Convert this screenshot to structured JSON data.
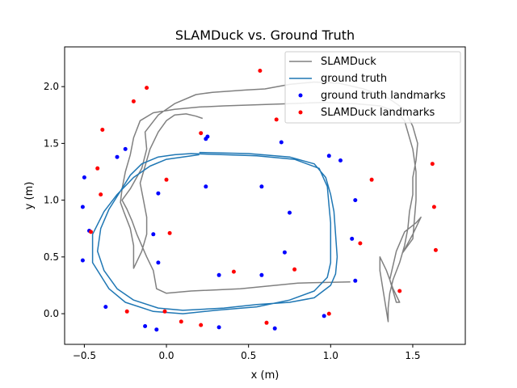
{
  "chart_data": {
    "type": "scatter",
    "title": "SLAMDuck vs. Ground Truth",
    "xlabel": "x (m)",
    "ylabel": "y (m)",
    "xlim": [
      -0.62,
      1.82
    ],
    "ylim": [
      -0.27,
      2.35
    ],
    "xticks": [
      -0.5,
      0.0,
      0.5,
      1.0,
      1.5
    ],
    "xtick_labels": [
      "−0.5",
      "0.0",
      "0.5",
      "1.0",
      "1.5"
    ],
    "yticks": [
      0.0,
      0.5,
      1.0,
      1.5,
      2.0
    ],
    "ytick_labels": [
      "0.0",
      "0.5",
      "1.0",
      "1.5",
      "2.0"
    ],
    "grid": false,
    "legend_position": "top-right",
    "legend": [
      {
        "label": "SLAMDuck",
        "kind": "line",
        "color": "#808080"
      },
      {
        "label": "ground truth",
        "kind": "line",
        "color": "#1f77b4"
      },
      {
        "label": "ground truth landmarks",
        "kind": "marker",
        "color": "#0000ff"
      },
      {
        "label": "SLAMDuck landmarks",
        "kind": "marker",
        "color": "#ff0000"
      }
    ],
    "series": [
      {
        "name": "SLAMDuck",
        "kind": "line",
        "color": "#808080",
        "points": [
          [
            1.12,
            0.28
          ],
          [
            0.8,
            0.27
          ],
          [
            0.45,
            0.22
          ],
          [
            0.15,
            0.2
          ],
          [
            0.0,
            0.18
          ],
          [
            -0.06,
            0.22
          ],
          [
            -0.08,
            0.38
          ],
          [
            -0.12,
            0.5
          ],
          [
            -0.15,
            0.6
          ],
          [
            -0.18,
            0.7
          ],
          [
            -0.21,
            0.82
          ],
          [
            -0.24,
            0.92
          ],
          [
            -0.27,
            1.0
          ],
          [
            -0.22,
            1.1
          ],
          [
            -0.15,
            1.28
          ],
          [
            -0.12,
            1.45
          ],
          [
            -0.13,
            1.6
          ],
          [
            -0.05,
            1.75
          ],
          [
            0.05,
            1.85
          ],
          [
            0.18,
            1.93
          ],
          [
            0.28,
            1.95
          ],
          [
            0.48,
            1.97
          ],
          [
            0.6,
            1.98
          ],
          [
            0.75,
            2.02
          ],
          [
            0.9,
            2.04
          ],
          [
            1.05,
            2.03
          ],
          [
            1.2,
            1.98
          ],
          [
            1.35,
            1.9
          ],
          [
            1.45,
            1.8
          ],
          [
            1.5,
            1.65
          ],
          [
            1.53,
            1.5
          ],
          [
            1.52,
            1.35
          ],
          [
            1.5,
            1.2
          ],
          [
            1.5,
            1.05
          ],
          [
            1.48,
            0.9
          ],
          [
            1.47,
            0.75
          ],
          [
            1.45,
            0.6
          ],
          [
            1.42,
            0.45
          ],
          [
            1.38,
            0.3
          ],
          [
            1.36,
            0.18
          ],
          [
            1.35,
            0.05
          ],
          [
            1.35,
            -0.07
          ],
          [
            1.32,
            0.2
          ],
          [
            1.3,
            0.38
          ],
          [
            1.3,
            0.5
          ],
          [
            1.34,
            0.38
          ],
          [
            1.38,
            0.22
          ],
          [
            1.42,
            0.1
          ],
          [
            1.4,
            0.1
          ],
          [
            1.36,
            0.3
          ],
          [
            1.4,
            0.55
          ],
          [
            1.45,
            0.72
          ],
          [
            1.52,
            0.8
          ],
          [
            1.55,
            0.85
          ],
          [
            1.5,
            0.7
          ],
          [
            1.44,
            0.54
          ],
          [
            1.5,
            0.66
          ],
          [
            1.52,
            1.0
          ],
          [
            1.52,
            1.25
          ],
          [
            1.5,
            1.45
          ],
          [
            1.48,
            1.55
          ],
          [
            1.45,
            1.7
          ],
          [
            1.4,
            1.78
          ],
          [
            1.3,
            1.83
          ],
          [
            1.15,
            1.85
          ],
          [
            0.95,
            1.86
          ],
          [
            0.75,
            1.85
          ],
          [
            0.55,
            1.84
          ],
          [
            0.35,
            1.83
          ],
          [
            0.2,
            1.82
          ],
          [
            0.05,
            1.8
          ],
          [
            -0.08,
            1.77
          ],
          [
            -0.16,
            1.7
          ],
          [
            -0.2,
            1.55
          ],
          [
            -0.22,
            1.4
          ],
          [
            -0.25,
            1.25
          ],
          [
            -0.27,
            1.1
          ],
          [
            -0.28,
            0.98
          ],
          [
            -0.26,
            0.9
          ],
          [
            -0.22,
            0.75
          ],
          [
            -0.2,
            0.6
          ],
          [
            -0.2,
            0.45
          ],
          [
            -0.2,
            0.4
          ],
          [
            -0.15,
            0.55
          ],
          [
            -0.12,
            0.7
          ],
          [
            -0.12,
            0.85
          ],
          [
            -0.14,
            1.0
          ],
          [
            -0.16,
            1.15
          ],
          [
            -0.13,
            1.3
          ],
          [
            -0.1,
            1.45
          ],
          [
            -0.05,
            1.6
          ],
          [
            0.0,
            1.7
          ],
          [
            0.05,
            1.75
          ],
          [
            0.12,
            1.76
          ],
          [
            0.18,
            1.74
          ],
          [
            0.22,
            1.72
          ]
        ]
      },
      {
        "name": "ground truth",
        "kind": "line",
        "color": "#1f77b4",
        "points": [
          [
            0.2,
            1.42
          ],
          [
            0.5,
            1.41
          ],
          [
            0.75,
            1.38
          ],
          [
            0.9,
            1.32
          ],
          [
            0.97,
            1.2
          ],
          [
            1.0,
            1.05
          ],
          [
            1.02,
            0.9
          ],
          [
            1.03,
            0.7
          ],
          [
            1.04,
            0.5
          ],
          [
            1.03,
            0.35
          ],
          [
            1.0,
            0.25
          ],
          [
            0.9,
            0.14
          ],
          [
            0.75,
            0.1
          ],
          [
            0.55,
            0.08
          ],
          [
            0.35,
            0.05
          ],
          [
            0.1,
            0.03
          ],
          [
            -0.05,
            0.05
          ],
          [
            -0.2,
            0.12
          ],
          [
            -0.3,
            0.22
          ],
          [
            -0.38,
            0.38
          ],
          [
            -0.42,
            0.55
          ],
          [
            -0.4,
            0.75
          ],
          [
            -0.35,
            0.92
          ],
          [
            -0.28,
            1.08
          ],
          [
            -0.22,
            1.22
          ],
          [
            -0.15,
            1.32
          ],
          [
            -0.05,
            1.38
          ],
          [
            0.05,
            1.4
          ],
          [
            0.15,
            1.41
          ],
          [
            0.35,
            1.4
          ],
          [
            0.55,
            1.39
          ],
          [
            0.78,
            1.36
          ],
          [
            0.93,
            1.28
          ],
          [
            0.98,
            1.12
          ],
          [
            0.99,
            0.95
          ],
          [
            1.0,
            0.8
          ],
          [
            1.0,
            0.6
          ],
          [
            1.0,
            0.45
          ],
          [
            0.98,
            0.32
          ],
          [
            0.9,
            0.2
          ],
          [
            0.75,
            0.12
          ],
          [
            0.55,
            0.06
          ],
          [
            0.3,
            0.03
          ],
          [
            0.1,
            0.0
          ],
          [
            -0.08,
            0.02
          ],
          [
            -0.25,
            0.1
          ],
          [
            -0.35,
            0.22
          ],
          [
            -0.45,
            0.45
          ],
          [
            -0.45,
            0.7
          ],
          [
            -0.38,
            0.9
          ],
          [
            -0.3,
            1.05
          ],
          [
            -0.2,
            1.2
          ],
          [
            -0.1,
            1.3
          ],
          [
            0.0,
            1.36
          ],
          [
            0.1,
            1.38
          ],
          [
            0.2,
            1.4
          ]
        ]
      },
      {
        "name": "ground truth landmarks",
        "kind": "marker",
        "color": "#0000ff",
        "points": [
          [
            -0.5,
            1.2
          ],
          [
            -0.51,
            0.94
          ],
          [
            -0.51,
            0.47
          ],
          [
            -0.47,
            0.73
          ],
          [
            -0.37,
            0.06
          ],
          [
            -0.3,
            1.38
          ],
          [
            -0.25,
            1.45
          ],
          [
            -0.13,
            -0.11
          ],
          [
            -0.08,
            0.7
          ],
          [
            -0.06,
            -0.14
          ],
          [
            -0.05,
            1.06
          ],
          [
            -0.05,
            0.45
          ],
          [
            0.24,
            1.54
          ],
          [
            0.25,
            1.56
          ],
          [
            0.24,
            1.12
          ],
          [
            0.32,
            0.34
          ],
          [
            0.32,
            -0.12
          ],
          [
            0.58,
            1.12
          ],
          [
            0.58,
            0.34
          ],
          [
            0.66,
            -0.13
          ],
          [
            0.7,
            1.51
          ],
          [
            0.72,
            0.54
          ],
          [
            0.75,
            0.89
          ],
          [
            0.96,
            -0.02
          ],
          [
            0.99,
            1.39
          ],
          [
            1.06,
            1.35
          ],
          [
            1.13,
            0.66
          ],
          [
            1.15,
            1.0
          ],
          [
            1.15,
            0.29
          ]
        ]
      },
      {
        "name": "SLAMDuck landmarks",
        "kind": "marker",
        "color": "#ff0000",
        "points": [
          [
            -0.46,
            0.72
          ],
          [
            -0.42,
            1.28
          ],
          [
            -0.4,
            1.05
          ],
          [
            -0.39,
            1.62
          ],
          [
            -0.24,
            0.02
          ],
          [
            -0.2,
            1.87
          ],
          [
            -0.12,
            1.99
          ],
          [
            -0.01,
            0.02
          ],
          [
            0.0,
            1.18
          ],
          [
            0.02,
            0.71
          ],
          [
            0.09,
            -0.07
          ],
          [
            0.21,
            1.59
          ],
          [
            0.21,
            -0.1
          ],
          [
            0.41,
            0.37
          ],
          [
            0.57,
            2.14
          ],
          [
            0.61,
            -0.08
          ],
          [
            0.67,
            1.71
          ],
          [
            0.78,
            0.39
          ],
          [
            0.99,
            0.0
          ],
          [
            1.18,
            0.62
          ],
          [
            1.25,
            1.18
          ],
          [
            1.42,
            0.2
          ],
          [
            1.62,
            1.32
          ],
          [
            1.63,
            0.94
          ],
          [
            1.64,
            0.56
          ]
        ]
      }
    ]
  }
}
